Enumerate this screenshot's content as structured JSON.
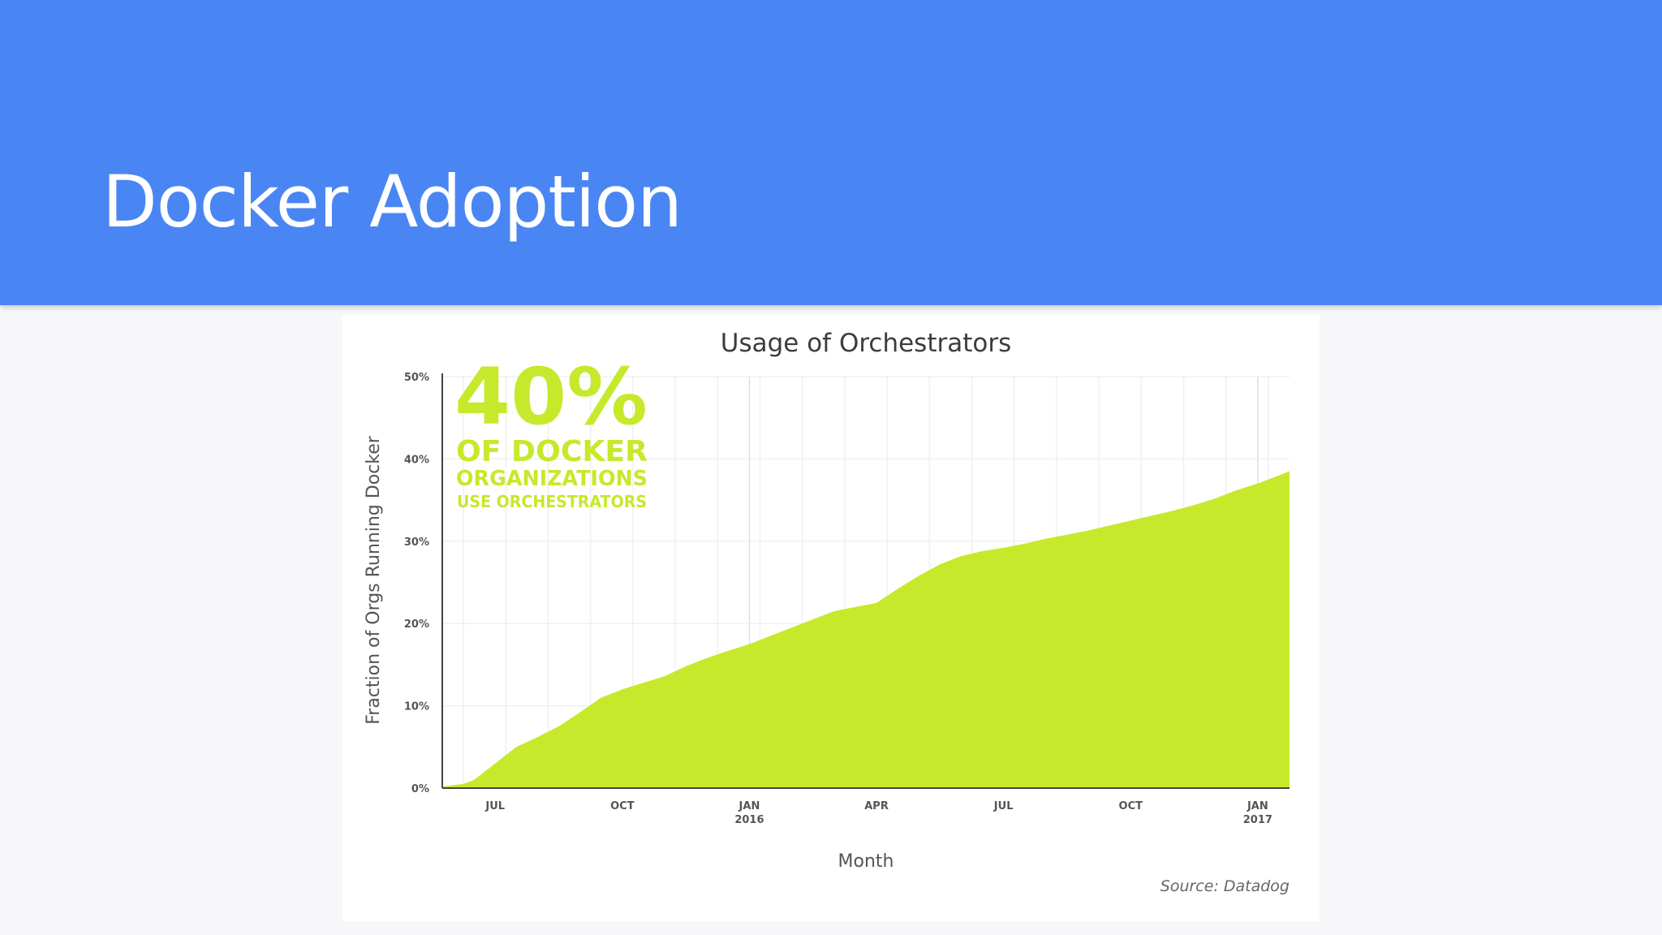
{
  "slide": {
    "title": "Docker Adoption"
  },
  "chart_data": {
    "type": "area",
    "title": "Usage of Orchestrators",
    "xlabel": "Month",
    "ylabel": "Fraction of Orgs Running Docker",
    "ylim": [
      0,
      50
    ],
    "y_ticks": [
      "0%",
      "10%",
      "20%",
      "30%",
      "40%",
      "50%"
    ],
    "y_tick_values": [
      0,
      10,
      20,
      30,
      40,
      50
    ],
    "x_ticks": [
      {
        "label": "JUL",
        "label2": "",
        "month": 1
      },
      {
        "label": "OCT",
        "label2": "",
        "month": 4
      },
      {
        "label": "JAN",
        "label2": "2016",
        "month": 7
      },
      {
        "label": "APR",
        "label2": "",
        "month": 10
      },
      {
        "label": "JUL",
        "label2": "",
        "month": 13
      },
      {
        "label": "OCT",
        "label2": "",
        "month": 16
      },
      {
        "label": "JAN",
        "label2": "2017",
        "month": 19
      }
    ],
    "xlim": [
      -0.25,
      19.75
    ],
    "x": [
      -0.25,
      0.25,
      0.5,
      1.0,
      1.5,
      2.0,
      2.5,
      3.0,
      3.5,
      4.0,
      4.5,
      5.0,
      5.5,
      6.0,
      6.5,
      7.0,
      7.5,
      8.0,
      8.5,
      9.0,
      9.5,
      10.0,
      10.5,
      11.0,
      11.5,
      12.0,
      12.5,
      13.0,
      13.5,
      14.0,
      14.5,
      15.0,
      15.5,
      16.0,
      16.5,
      17.0,
      17.5,
      18.0,
      18.5,
      19.0,
      19.5,
      19.75
    ],
    "series": [
      {
        "values": [
          0.2,
          0.5,
          1.0,
          3.0,
          5.0,
          6.2,
          7.5,
          9.2,
          11.0,
          12.0,
          12.8,
          13.6,
          14.8,
          15.8,
          16.7,
          17.5,
          18.5,
          19.5,
          20.5,
          21.5,
          22.0,
          22.5,
          24.2,
          25.8,
          27.2,
          28.2,
          28.8,
          29.2,
          29.7,
          30.3,
          30.8,
          31.3,
          31.9,
          32.5,
          33.1,
          33.7,
          34.4,
          35.2,
          36.2,
          37.0,
          38.0,
          38.5
        ],
        "color": "#c6e92b"
      }
    ],
    "grid": true,
    "callout": {
      "big": "40%",
      "line1": "OF DOCKER",
      "line2": "ORGANIZATIONS",
      "line3": "USE ORCHESTRATORS",
      "color": "#c6e92b"
    },
    "source": "Source: Datadog"
  }
}
